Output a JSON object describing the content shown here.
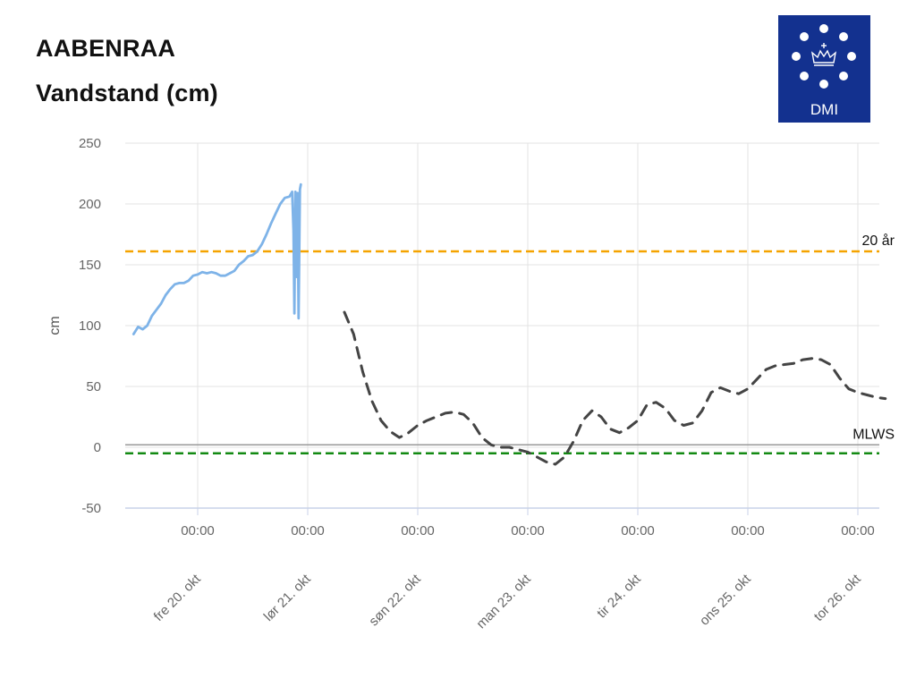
{
  "header": {
    "station": "AABENRAA",
    "measure": "Vandstand (cm)"
  },
  "logo": {
    "text": "DMI",
    "color": "#13318f",
    "icon": "crown-with-dots-icon"
  },
  "chart_data": {
    "type": "line",
    "ylabel": "cm",
    "ylim": [
      -50,
      250
    ],
    "y_ticks": [
      250,
      200,
      150,
      100,
      50,
      0,
      -50
    ],
    "x_range_hours": [
      -14,
      153
    ],
    "x_ticks": [
      {
        "hour": 0,
        "time_label": "00:00",
        "day_label": "fre 20. okt"
      },
      {
        "hour": 24,
        "time_label": "00:00",
        "day_label": "lør 21. okt"
      },
      {
        "hour": 48,
        "time_label": "00:00",
        "day_label": "søn 22. okt"
      },
      {
        "hour": 72,
        "time_label": "00:00",
        "day_label": "man 23. okt"
      },
      {
        "hour": 96,
        "time_label": "00:00",
        "day_label": "tir 24. okt"
      },
      {
        "hour": 120,
        "time_label": "00:00",
        "day_label": "ons 25. okt"
      },
      {
        "hour": 144,
        "time_label": "00:00",
        "day_label": "tor 26. okt"
      }
    ],
    "grid": true,
    "reference_lines": [
      {
        "label": "20 år",
        "value": 161,
        "color": "#f5a300",
        "style": "dashed"
      },
      {
        "label": "MLWS",
        "value": 2,
        "color": "#999999",
        "style": "solid"
      },
      {
        "label": "",
        "value": -5,
        "color": "#138a13",
        "style": "dashed"
      }
    ],
    "series": [
      {
        "style": "solid",
        "color": "#7eb3e8",
        "points": [
          [
            -14,
            93
          ],
          [
            -13,
            99
          ],
          [
            -12,
            97
          ],
          [
            -11,
            100
          ],
          [
            -10,
            108
          ],
          [
            -9,
            113
          ],
          [
            -8,
            118
          ],
          [
            -7,
            125
          ],
          [
            -6,
            130
          ],
          [
            -5,
            134
          ],
          [
            -4,
            135
          ],
          [
            -3,
            135
          ],
          [
            -2,
            137
          ],
          [
            -1,
            141
          ],
          [
            0,
            142
          ],
          [
            1,
            144
          ],
          [
            2,
            143
          ],
          [
            3,
            144
          ],
          [
            4,
            143
          ],
          [
            5,
            141
          ],
          [
            6,
            141
          ],
          [
            7,
            143
          ],
          [
            8,
            145
          ],
          [
            9,
            150
          ],
          [
            10,
            153
          ],
          [
            11,
            157
          ],
          [
            12,
            158
          ],
          [
            13,
            161
          ],
          [
            14,
            167
          ],
          [
            15,
            175
          ],
          [
            16,
            184
          ],
          [
            17,
            192
          ],
          [
            18,
            200
          ],
          [
            19,
            205
          ],
          [
            20,
            206
          ],
          [
            20.6,
            210
          ],
          [
            20.9,
            178
          ],
          [
            21.1,
            110
          ],
          [
            21.3,
            210
          ],
          [
            21.6,
            140
          ],
          [
            21.8,
            209
          ],
          [
            22.0,
            106
          ],
          [
            22.3,
            212
          ],
          [
            22.5,
            216
          ]
        ]
      },
      {
        "style": "dashed",
        "color": "#444444",
        "points": [
          [
            32,
            111
          ],
          [
            34,
            93
          ],
          [
            36,
            62
          ],
          [
            38,
            38
          ],
          [
            40,
            22
          ],
          [
            42,
            13
          ],
          [
            44,
            8
          ],
          [
            46,
            12
          ],
          [
            48,
            18
          ],
          [
            50,
            22
          ],
          [
            52,
            25
          ],
          [
            54,
            28
          ],
          [
            56,
            29
          ],
          [
            58,
            27
          ],
          [
            60,
            20
          ],
          [
            62,
            8
          ],
          [
            64,
            2
          ],
          [
            66,
            0
          ],
          [
            68,
            0
          ],
          [
            70,
            -2
          ],
          [
            72,
            -4
          ],
          [
            74,
            -8
          ],
          [
            76,
            -12
          ],
          [
            78,
            -14
          ],
          [
            80,
            -8
          ],
          [
            82,
            5
          ],
          [
            84,
            22
          ],
          [
            86,
            30
          ],
          [
            88,
            25
          ],
          [
            90,
            15
          ],
          [
            92,
            12
          ],
          [
            94,
            16
          ],
          [
            96,
            22
          ],
          [
            98,
            35
          ],
          [
            100,
            37
          ],
          [
            102,
            32
          ],
          [
            104,
            22
          ],
          [
            106,
            18
          ],
          [
            108,
            20
          ],
          [
            110,
            30
          ],
          [
            112,
            45
          ],
          [
            114,
            49
          ],
          [
            116,
            46
          ],
          [
            118,
            44
          ],
          [
            120,
            48
          ],
          [
            122,
            56
          ],
          [
            124,
            64
          ],
          [
            126,
            67
          ],
          [
            128,
            68
          ],
          [
            130,
            69
          ],
          [
            132,
            72
          ],
          [
            134,
            73
          ],
          [
            136,
            72
          ],
          [
            138,
            68
          ],
          [
            140,
            57
          ],
          [
            142,
            48
          ],
          [
            144,
            45
          ],
          [
            146,
            43
          ],
          [
            148,
            41
          ],
          [
            150,
            40
          ]
        ]
      }
    ]
  }
}
